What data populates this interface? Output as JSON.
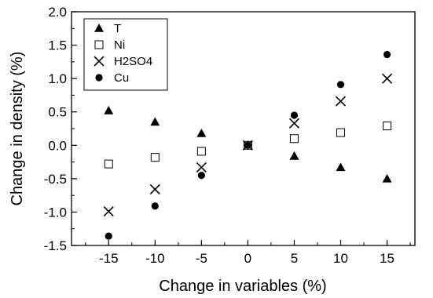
{
  "chart_data": {
    "type": "scatter",
    "xlabel": "Change in variables (%)",
    "ylabel": "Change in density (%)",
    "xlim": [
      -19,
      18
    ],
    "ylim": [
      -1.5,
      2.0
    ],
    "xticks": [
      -15,
      -10,
      -5,
      0,
      5,
      10,
      15
    ],
    "xtick_labels": [
      "-15",
      "-10",
      "-5",
      "0",
      "5",
      "10",
      "15"
    ],
    "yticks": [
      -1.5,
      -1.0,
      -0.5,
      0.0,
      0.5,
      1.0,
      1.5,
      2.0
    ],
    "ytick_labels": [
      "-1.5",
      "-1.0",
      "-0.5",
      "0.0",
      "0.5",
      "1.0",
      "1.5",
      "2.0"
    ],
    "grid": false,
    "legend_position": "top-left",
    "x": [
      -15,
      -10,
      -5,
      0,
      5,
      10,
      15
    ],
    "series": [
      {
        "name": "T",
        "marker": "triangle",
        "values": [
          0.52,
          0.35,
          0.18,
          0.0,
          -0.16,
          -0.33,
          -0.5
        ]
      },
      {
        "name": "Ni",
        "marker": "square-open",
        "values": [
          -0.28,
          -0.18,
          -0.09,
          0.0,
          0.1,
          0.19,
          0.29
        ]
      },
      {
        "name": "H2SO4",
        "marker": "x",
        "values": [
          -0.99,
          -0.66,
          -0.33,
          0.0,
          0.33,
          0.66,
          1.0
        ]
      },
      {
        "name": "Cu",
        "marker": "circle",
        "values": [
          -1.36,
          -0.91,
          -0.45,
          0.0,
          0.45,
          0.91,
          1.36
        ]
      }
    ]
  }
}
